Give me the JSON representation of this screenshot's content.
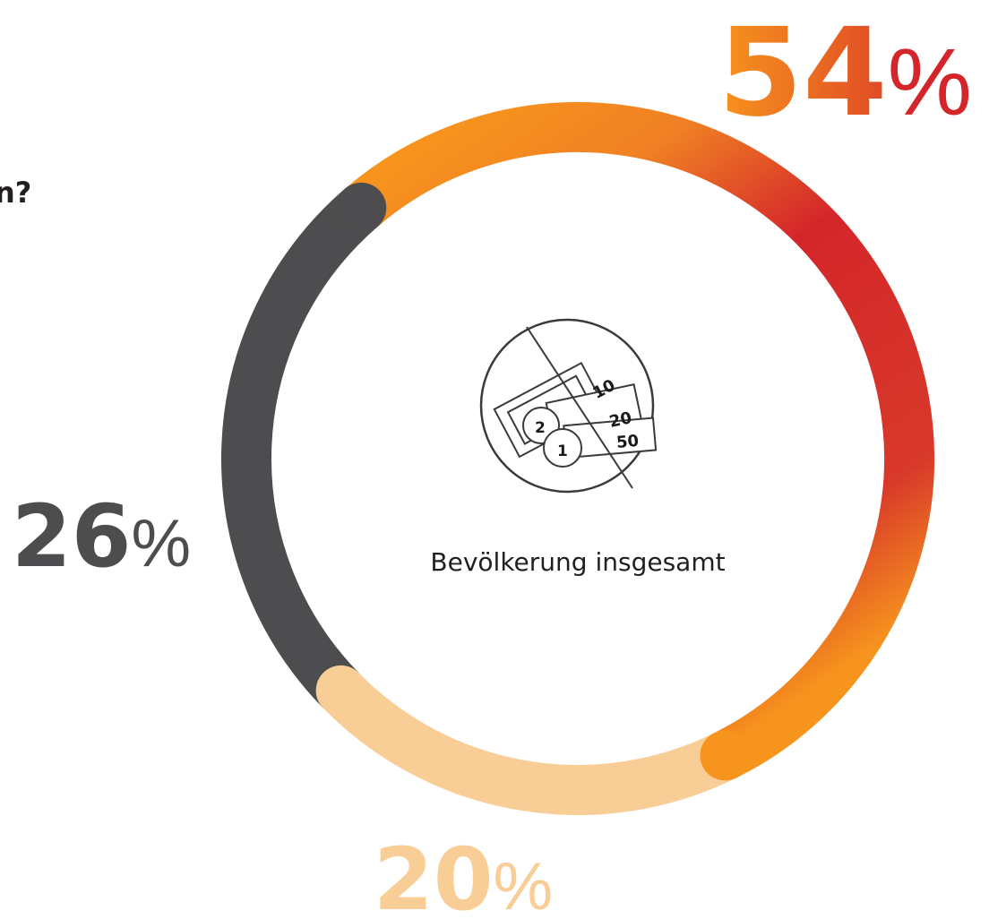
{
  "chart_data": {
    "type": "donut",
    "title": "n?",
    "center_label": "Bevölkerung insgesamt",
    "categories": [
      null,
      null,
      null
    ],
    "values": [
      54,
      20,
      26
    ],
    "value_labels": [
      "54%",
      "20%",
      "26%"
    ],
    "colors": [
      "#e1372a",
      "#f9cd96",
      "#4d4d4f"
    ]
  }
}
